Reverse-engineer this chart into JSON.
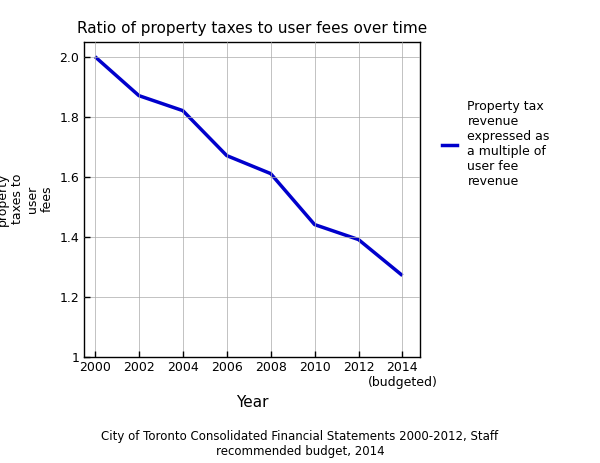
{
  "title": "Ratio of property taxes to user fees over time",
  "xlabel": "Year",
  "ylabel": "Ratio of\nproperty\ntaxes to\nuser\nfees",
  "caption": "City of Toronto Consolidated Financial Statements 2000-2012, Staff\nrecommended budget, 2014",
  "years": [
    2000,
    2002,
    2004,
    2006,
    2008,
    2010,
    2012,
    2014
  ],
  "values": [
    2.0,
    1.87,
    1.82,
    1.67,
    1.61,
    1.44,
    1.39,
    1.27
  ],
  "line_color": "#0000CC",
  "line_width": 2.5,
  "ylim": [
    1.0,
    2.05
  ],
  "yticks": [
    1.0,
    1.2,
    1.4,
    1.6,
    1.8,
    2.0
  ],
  "xticks": [
    2000,
    2002,
    2004,
    2006,
    2008,
    2010,
    2012,
    2014
  ],
  "legend_label": "Property tax\nrevenue\nexpressed as\na multiple of\nuser fee\nrevenue",
  "last_tick_label": "(budgeted)"
}
